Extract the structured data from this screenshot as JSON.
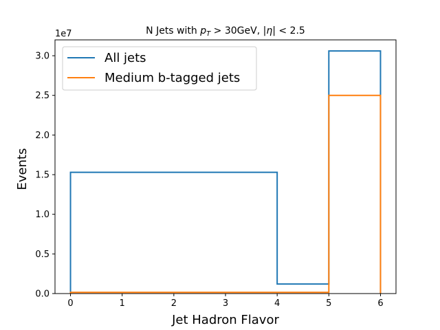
{
  "chart_data": {
    "type": "histogram-step",
    "title": "N Jets with p_T > 30GeV, |η| < 2.5",
    "title_parts": {
      "prefix": "N Jets with ",
      "var": "p",
      "sub": "T",
      "rest": " > 30GeV, |",
      "eta": "η",
      "suffix": "| < 2.5"
    },
    "xlabel": "Jet Hadron Flavor",
    "ylabel": "Events",
    "y_offset_label": "1e7",
    "xlim": [
      -0.3,
      6.3
    ],
    "ylim": [
      0,
      32000000.0
    ],
    "x_ticks": [
      0,
      1,
      2,
      3,
      4,
      5,
      6
    ],
    "y_ticks": [
      0,
      5000000.0,
      10000000.0,
      15000000.0,
      20000000.0,
      25000000.0,
      30000000.0
    ],
    "y_tick_labels": [
      "0.0",
      "0.5",
      "1.0",
      "1.5",
      "2.0",
      "2.5",
      "3.0"
    ],
    "bin_edges": [
      0,
      4,
      5,
      6
    ],
    "legend_position": "upper-left",
    "series": [
      {
        "name": "All jets",
        "color": "#1f77b4",
        "values": [
          15300000,
          1200000,
          30600000
        ]
      },
      {
        "name": "Medium b-tagged jets",
        "color": "#ff7f0e",
        "values": [
          150000,
          150000,
          25000000
        ]
      }
    ]
  }
}
